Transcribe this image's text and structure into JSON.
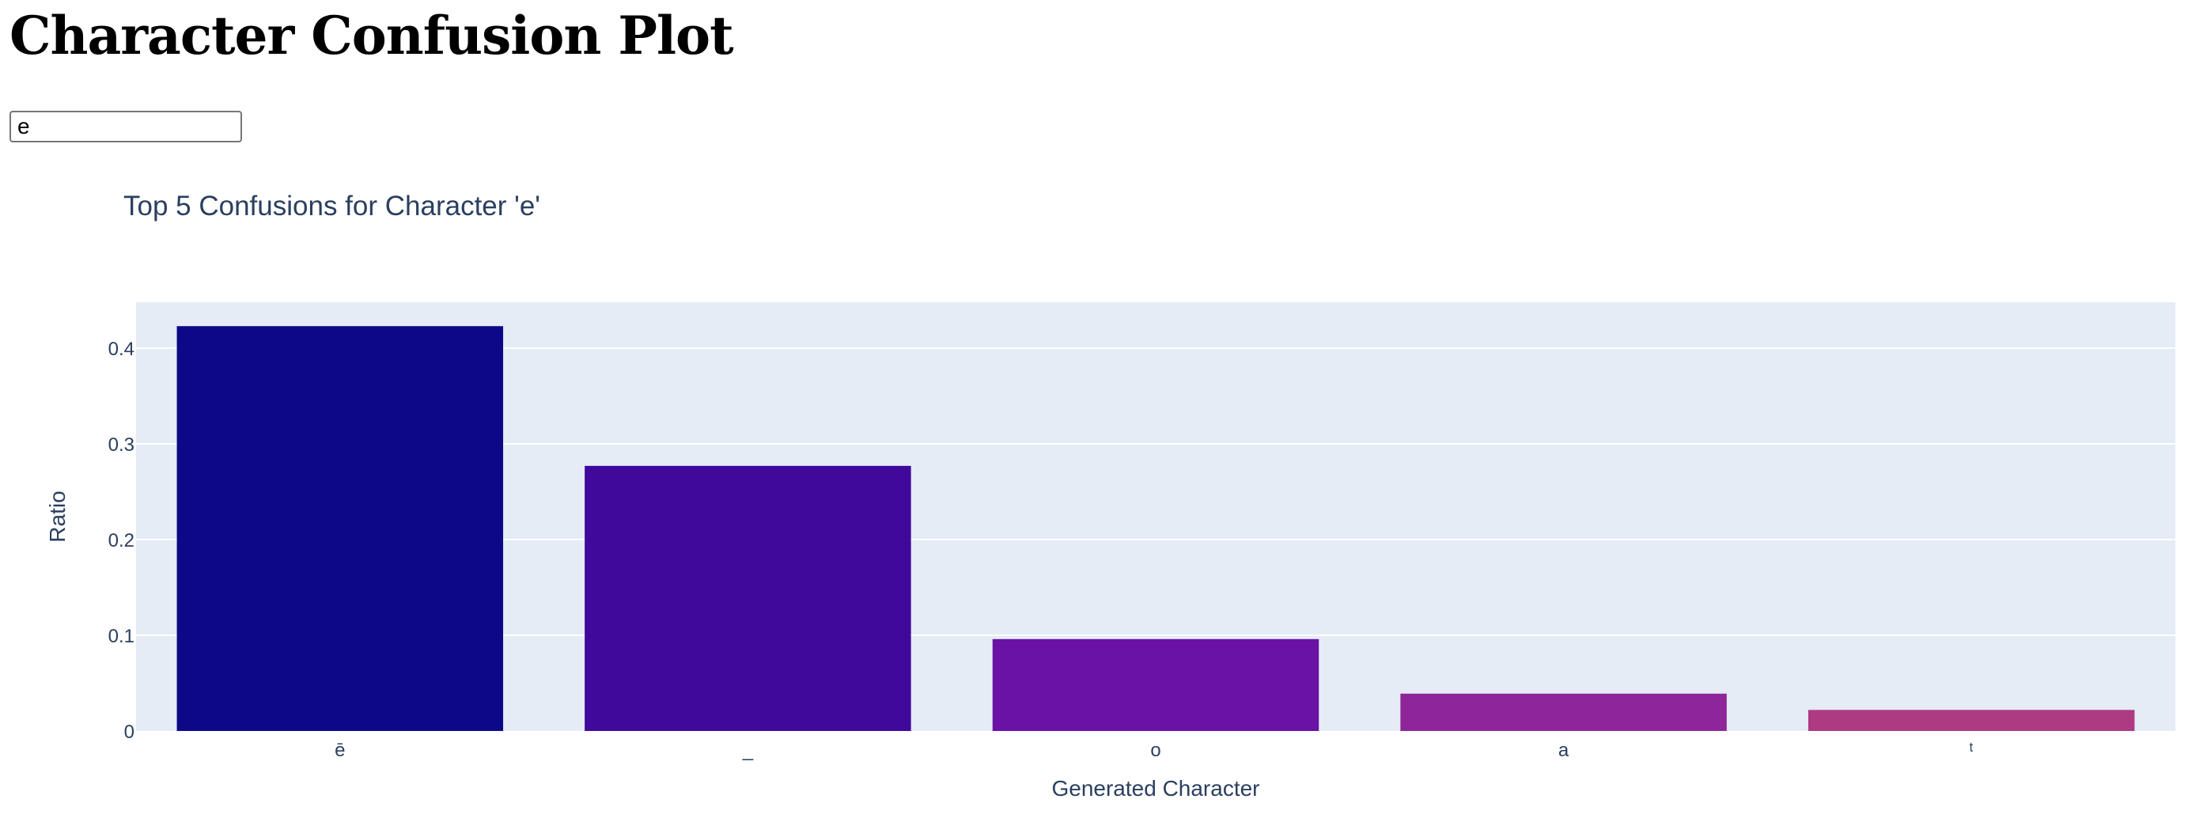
{
  "page": {
    "title": "Character Confusion Plot"
  },
  "character_input": {
    "value": "e"
  },
  "chart_data": {
    "type": "bar",
    "title": "Top 5 Confusions for Character 'e'",
    "xlabel": "Generated Character",
    "ylabel": "Ratio",
    "categories": [
      "ē",
      "_",
      "o",
      "a",
      "ᵗ"
    ],
    "values": [
      0.423,
      0.277,
      0.096,
      0.039,
      0.022
    ],
    "colors": [
      "#0d0887",
      "#41089c",
      "#6a12a4",
      "#8e2599",
      "#ad3a82"
    ],
    "ylim": [
      0,
      0.448
    ],
    "yticks": [
      0,
      0.1,
      0.2,
      0.3,
      0.4
    ],
    "ytick_labels": [
      "0",
      "0.1",
      "0.2",
      "0.3",
      "0.4"
    ],
    "grid": true,
    "plot_bgcolor": "#e5ecf6",
    "grid_color": "#ffffff",
    "text_color": "#2a3f5f"
  }
}
